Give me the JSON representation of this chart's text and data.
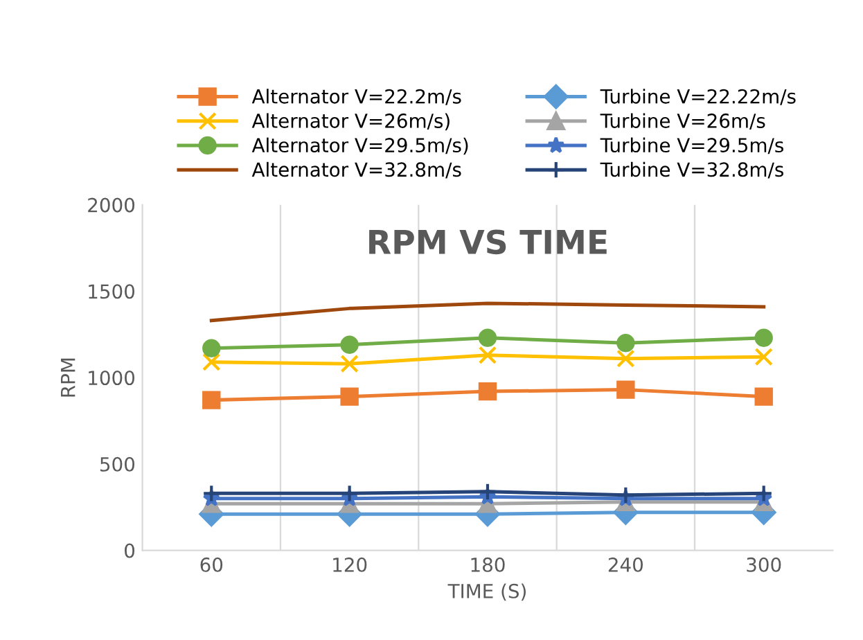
{
  "chart_data": {
    "type": "line",
    "title": "RPM VS TIME",
    "xlabel": "TIME (S)",
    "ylabel": "RPM",
    "categories": [
      "60",
      "120",
      "180",
      "240",
      "300"
    ],
    "ylim": [
      0,
      2000
    ],
    "yticks": [
      0,
      500,
      1000,
      1500,
      2000
    ],
    "grid": "x",
    "legend": "top",
    "series": [
      {
        "name": "Alternator V=22.2m/s",
        "color": "#ed7d31",
        "marker": "square",
        "values": [
          870,
          890,
          920,
          930,
          890
        ]
      },
      {
        "name": "Alternator V=26m/s)",
        "color": "#ffc000",
        "marker": "cross",
        "values": [
          1090,
          1080,
          1130,
          1110,
          1120
        ]
      },
      {
        "name": "Alternator V=29.5m/s)",
        "color": "#70ad47",
        "marker": "circle",
        "values": [
          1170,
          1190,
          1230,
          1200,
          1230
        ]
      },
      {
        "name": "Alternator V=32.8m/s",
        "color": "#9e480e",
        "marker": "none",
        "values": [
          1330,
          1400,
          1430,
          1420,
          1410
        ]
      },
      {
        "name": "Turbine V=22.22m/s",
        "color": "#5b9bd5",
        "marker": "diamond",
        "values": [
          210,
          210,
          210,
          220,
          220
        ]
      },
      {
        "name": "Turbine V=26m/s",
        "color": "#a5a5a5",
        "marker": "triangle",
        "values": [
          270,
          270,
          270,
          280,
          280
        ]
      },
      {
        "name": "Turbine V=29.5m/s",
        "color": "#4472c4",
        "marker": "star",
        "values": [
          300,
          300,
          310,
          300,
          300
        ]
      },
      {
        "name": "Turbine V=32.8m/s",
        "color": "#264478",
        "marker": "plus",
        "values": [
          330,
          330,
          340,
          320,
          330
        ]
      }
    ]
  }
}
